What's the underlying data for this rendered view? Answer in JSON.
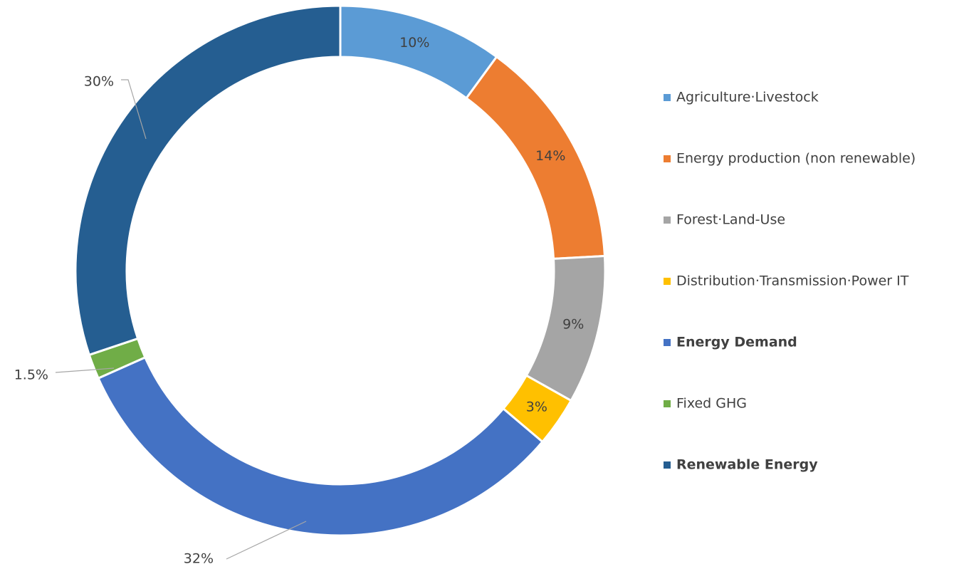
{
  "chart_data": {
    "type": "donut",
    "categories": [
      "Agriculture·Livestock",
      "Energy production (non renewable)",
      "Forest·Land-Use",
      "Distribution·Transmission·Power IT",
      "Energy Demand",
      "Fixed GHG",
      "Renewable Energy"
    ],
    "values": [
      10,
      14,
      9,
      3,
      32,
      1.5,
      30
    ],
    "value_labels": [
      "10%",
      "14%",
      "9%",
      "3%",
      "32%",
      "1.5%",
      "30%"
    ],
    "colors": [
      "#5b9bd5",
      "#ed7d31",
      "#a5a5a5",
      "#ffc000",
      "#4472c4",
      "#70ad47",
      "#255e91"
    ],
    "bold_legend": [
      false,
      false,
      false,
      false,
      true,
      false,
      true
    ],
    "legend": "right"
  }
}
